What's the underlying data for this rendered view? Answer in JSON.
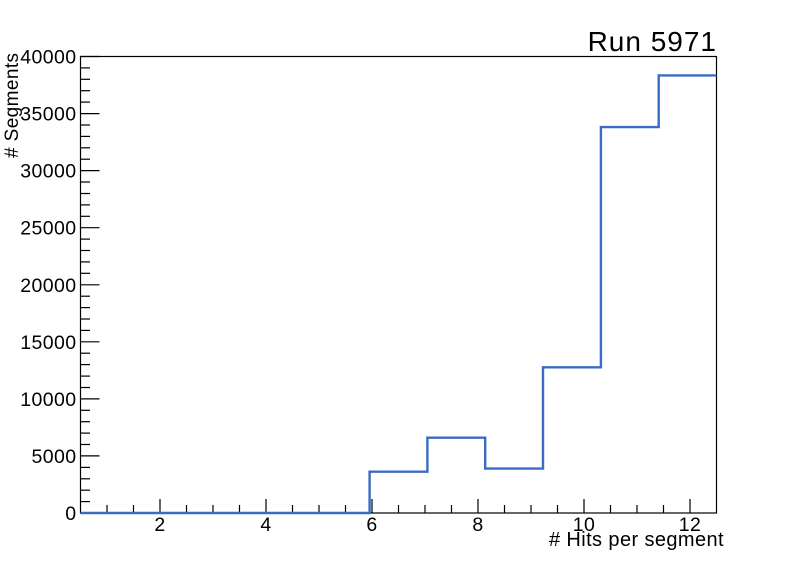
{
  "chart_data": {
    "type": "step-histogram",
    "title": "Run 5971",
    "xlabel": "# Hits per segment",
    "ylabel": "# Segments",
    "xlim": [
      0.5,
      12.5
    ],
    "ylim": [
      0,
      40000
    ],
    "bin_edges": [
      0.5,
      1.591,
      2.682,
      3.773,
      4.864,
      5.955,
      7.045,
      8.136,
      9.227,
      10.318,
      11.409,
      12.5
    ],
    "counts": [
      0,
      0,
      0,
      0,
      0,
      3620,
      6600,
      3890,
      12770,
      33810,
      38340
    ],
    "x_major_ticks": [
      2,
      4,
      6,
      8,
      10,
      12
    ],
    "x_minor_step": 0.5,
    "y_major_ticks": [
      0,
      5000,
      10000,
      15000,
      20000,
      25000,
      30000,
      35000,
      40000
    ],
    "y_minor_step": 1000,
    "grid": false,
    "line_color": "#3b6cc3",
    "axis_color": "#000000",
    "background": "#ffffff"
  }
}
